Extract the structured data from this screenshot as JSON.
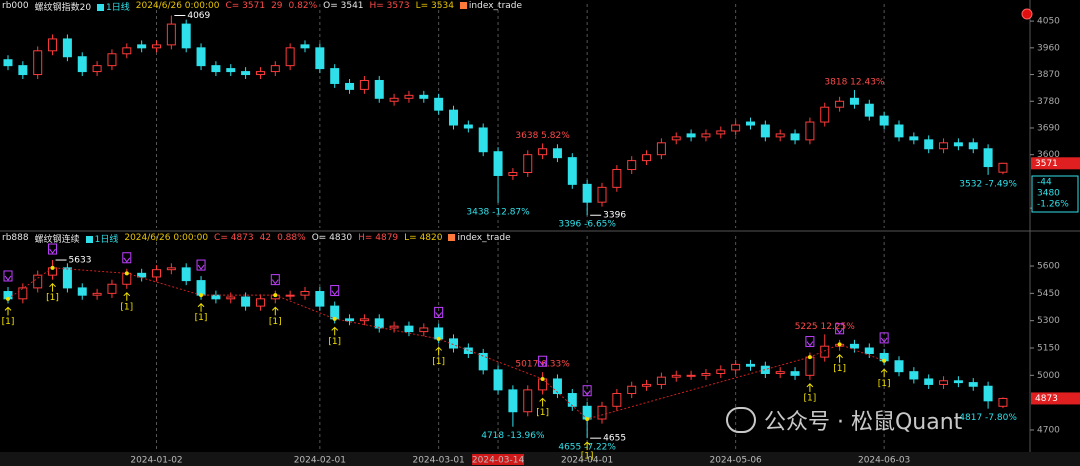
{
  "headers": [
    {
      "symbol": "rb000",
      "name": "螺纹钢指数20",
      "period": "1日线",
      "datetime": "2024/6/26 0:00:00",
      "close": "C= 3571",
      "change": "29",
      "change_pct": "0.82%",
      "open": "O= 3541",
      "high": "H= 3573",
      "low": "L= 3534",
      "indicator": "index_trade"
    },
    {
      "symbol": "rb888",
      "name": "螺纹钢连续",
      "period": "1日线",
      "datetime": "2024/6/26 0:00:00",
      "close": "C= 4873",
      "change": "42",
      "change_pct": "0.88%",
      "open": "O= 4830",
      "high": "H= 4879",
      "low": "L= 4820",
      "indicator": "index_trade"
    }
  ],
  "cursor_box": [
    "-44",
    "3480",
    "-1.26%"
  ],
  "signal_label": "[1]",
  "watermark": "公众号 · 松鼠Quant",
  "chart_data": [
    {
      "type": "candlestick",
      "up_color": "#ff3b3b",
      "down_color": "#2fe0ea",
      "ylim": [
        3353,
        4074
      ],
      "yticks": [
        4050,
        3960,
        3870,
        3780,
        3690,
        3600,
        3420
      ],
      "open": [
        3920,
        3900,
        3870,
        3950,
        3990,
        3930,
        3880,
        3900,
        3940,
        3970,
        3960,
        3970,
        4040,
        3960,
        3900,
        3890,
        3880,
        3870,
        3880,
        3900,
        3970,
        3960,
        3890,
        3840,
        3820,
        3850,
        3780,
        3790,
        3800,
        3790,
        3750,
        3700,
        3690,
        3610,
        3530,
        3540,
        3600,
        3620,
        3590,
        3500,
        3440,
        3490,
        3550,
        3580,
        3600,
        3650,
        3670,
        3660,
        3670,
        3680,
        3710,
        3700,
        3660,
        3670,
        3650,
        3710,
        3760,
        3790,
        3770,
        3730,
        3700,
        3660,
        3650,
        3620,
        3640,
        3640,
        3620,
        3541
      ],
      "high": [
        3935,
        3915,
        3965,
        4005,
        4005,
        3945,
        3915,
        3955,
        3975,
        3985,
        3985,
        4069,
        4055,
        3975,
        3915,
        3905,
        3895,
        3895,
        3915,
        3975,
        3985,
        3975,
        3905,
        3855,
        3865,
        3865,
        3805,
        3815,
        3815,
        3805,
        3765,
        3715,
        3705,
        3625,
        3555,
        3615,
        3638,
        3635,
        3605,
        3515,
        3505,
        3565,
        3595,
        3615,
        3655,
        3675,
        3685,
        3685,
        3695,
        3715,
        3725,
        3715,
        3685,
        3685,
        3725,
        3775,
        3795,
        3818,
        3785,
        3745,
        3715,
        3675,
        3665,
        3655,
        3655,
        3655,
        3635,
        3573
      ],
      "low": [
        3885,
        3855,
        3855,
        3935,
        3915,
        3865,
        3865,
        3885,
        3925,
        3945,
        3945,
        3955,
        3945,
        3885,
        3865,
        3865,
        3855,
        3855,
        3865,
        3885,
        3945,
        3875,
        3825,
        3805,
        3805,
        3775,
        3765,
        3775,
        3775,
        3735,
        3685,
        3675,
        3595,
        3438,
        3515,
        3525,
        3585,
        3575,
        3485,
        3396,
        3425,
        3475,
        3535,
        3565,
        3585,
        3635,
        3645,
        3645,
        3655,
        3665,
        3685,
        3645,
        3645,
        3635,
        3635,
        3695,
        3745,
        3755,
        3715,
        3685,
        3645,
        3635,
        3605,
        3605,
        3615,
        3605,
        3532,
        3534
      ],
      "close": [
        3900,
        3870,
        3950,
        3990,
        3930,
        3880,
        3900,
        3940,
        3960,
        3960,
        3970,
        4040,
        3960,
        3900,
        3880,
        3880,
        3870,
        3880,
        3900,
        3960,
        3960,
        3890,
        3840,
        3820,
        3850,
        3790,
        3790,
        3800,
        3790,
        3750,
        3700,
        3690,
        3610,
        3530,
        3540,
        3600,
        3620,
        3590,
        3500,
        3440,
        3490,
        3550,
        3580,
        3600,
        3640,
        3660,
        3660,
        3670,
        3680,
        3700,
        3700,
        3660,
        3670,
        3650,
        3710,
        3760,
        3780,
        3770,
        3730,
        3700,
        3660,
        3650,
        3620,
        3640,
        3630,
        3620,
        3560,
        3571
      ],
      "annotations": [
        "4069",
        "3638 5.82%",
        "3438 -12.87%",
        "3396 -6.65%",
        "3396",
        "3818 12.43%",
        "3532 -7.49%"
      ]
    },
    {
      "type": "candlestick",
      "up_color": "#ff3b3b",
      "down_color": "#2fe0ea",
      "ylim": [
        4579,
        5710
      ],
      "yticks": [
        5600,
        5450,
        5300,
        5150,
        5000,
        4700
      ],
      "categories": [
        null,
        null,
        null,
        null,
        null,
        null,
        null,
        null,
        null,
        null,
        "2024-01-02",
        null,
        null,
        null,
        null,
        null,
        null,
        null,
        null,
        null,
        null,
        "2024-02-01",
        null,
        null,
        null,
        null,
        null,
        null,
        null,
        "2024-03-01",
        null,
        null,
        null,
        "2024-03-14",
        null,
        null,
        null,
        null,
        null,
        "2024-04-01",
        null,
        null,
        null,
        null,
        null,
        null,
        null,
        null,
        null,
        "2024-05-06",
        null,
        null,
        null,
        null,
        null,
        null,
        null,
        null,
        null,
        "2024-06-03",
        null,
        null,
        null,
        null,
        null,
        null,
        null,
        null
      ],
      "highlight": "2024-03-14",
      "open": [
        5460,
        5420,
        5480,
        5550,
        5590,
        5480,
        5440,
        5450,
        5500,
        5560,
        5540,
        5580,
        5590,
        5520,
        5440,
        5420,
        5430,
        5380,
        5420,
        5440,
        5440,
        5460,
        5380,
        5310,
        5300,
        5310,
        5260,
        5270,
        5240,
        5260,
        5200,
        5150,
        5120,
        5030,
        4920,
        4800,
        4920,
        4980,
        4900,
        4830,
        4760,
        4830,
        4900,
        4940,
        4950,
        4990,
        5000,
        5000,
        5010,
        5030,
        5060,
        5050,
        5010,
        5020,
        5000,
        5100,
        5160,
        5170,
        5150,
        5120,
        5080,
        5020,
        4980,
        4950,
        4970,
        4960,
        4940,
        4830
      ],
      "high": [
        5485,
        5505,
        5575,
        5633,
        5615,
        5505,
        5475,
        5525,
        5585,
        5585,
        5605,
        5615,
        5615,
        5545,
        5465,
        5455,
        5455,
        5445,
        5465,
        5465,
        5485,
        5485,
        5405,
        5335,
        5335,
        5335,
        5295,
        5295,
        5285,
        5285,
        5225,
        5175,
        5145,
        5055,
        4945,
        4945,
        5017,
        5005,
        4925,
        4855,
        4855,
        4925,
        4965,
        4975,
        5015,
        5025,
        5025,
        5035,
        5055,
        5085,
        5085,
        5075,
        5045,
        5045,
        5125,
        5225,
        5195,
        5195,
        5175,
        5145,
        5105,
        5045,
        5005,
        4995,
        4995,
        4985,
        4965,
        4879
      ],
      "low": [
        5395,
        5395,
        5455,
        5525,
        5455,
        5415,
        5415,
        5425,
        5475,
        5515,
        5515,
        5555,
        5495,
        5415,
        5395,
        5395,
        5355,
        5355,
        5395,
        5415,
        5415,
        5355,
        5285,
        5275,
        5275,
        5235,
        5235,
        5215,
        5215,
        5175,
        5125,
        5095,
        5005,
        4895,
        4718,
        4775,
        4895,
        4875,
        4805,
        4655,
        4735,
        4805,
        4875,
        4915,
        4925,
        4965,
        4975,
        4975,
        4985,
        5005,
        5025,
        4985,
        4985,
        4975,
        4975,
        5075,
        5135,
        5125,
        5095,
        5055,
        4995,
        4955,
        4925,
        4925,
        4935,
        4915,
        4817,
        4820
      ],
      "close": [
        5420,
        5480,
        5550,
        5590,
        5480,
        5440,
        5450,
        5500,
        5560,
        5540,
        5580,
        5590,
        5520,
        5440,
        5420,
        5430,
        5380,
        5420,
        5440,
        5440,
        5460,
        5380,
        5310,
        5300,
        5310,
        5260,
        5270,
        5240,
        5260,
        5200,
        5150,
        5120,
        5030,
        4920,
        4800,
        4920,
        4980,
        4900,
        4830,
        4760,
        4830,
        4900,
        4940,
        4950,
        4990,
        5000,
        5000,
        5010,
        5030,
        5060,
        5050,
        5010,
        5020,
        5000,
        5100,
        5160,
        5170,
        5150,
        5120,
        5080,
        5020,
        4980,
        4950,
        4970,
        4960,
        4940,
        4860,
        4873
      ],
      "annotations": [
        "5633",
        "5017 6.33%",
        "4718 -13.96%",
        "4655 -7.22%",
        "4655",
        "5225 12.25%",
        "4817 -7.80%"
      ]
    }
  ]
}
